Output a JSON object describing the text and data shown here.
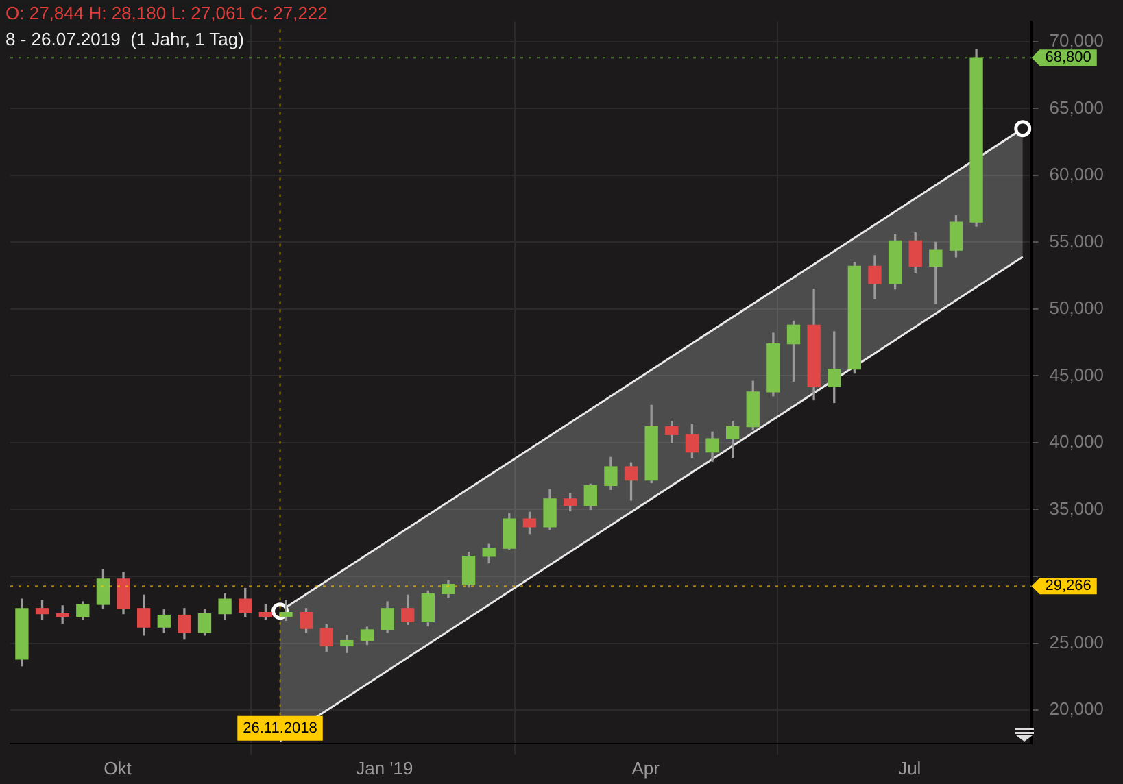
{
  "chart_data": {
    "type": "candlestick",
    "title": "O: 27,844  H: 28,180  L: 27,061  C: 27,222",
    "subtitle": "8 - 26.07.2019  (1 Jahr, 1 Tag)",
    "x": [
      "2018-08-29",
      "2018-09-05",
      "2018-09-12",
      "2018-09-19",
      "2018-09-26",
      "2018-10-03",
      "2018-10-10",
      "2018-10-17",
      "2018-10-24",
      "2018-10-31",
      "2018-11-07",
      "2018-11-14",
      "2018-11-21",
      "2018-11-28",
      "2018-12-05",
      "2018-12-12",
      "2018-12-19",
      "2018-12-26",
      "2019-01-02",
      "2019-01-09",
      "2019-01-16",
      "2019-01-23",
      "2019-01-30",
      "2019-02-06",
      "2019-02-13",
      "2019-02-20",
      "2019-02-27",
      "2019-03-06",
      "2019-03-13",
      "2019-03-20",
      "2019-03-27",
      "2019-04-03",
      "2019-04-10",
      "2019-04-17",
      "2019-04-24",
      "2019-05-01",
      "2019-05-08",
      "2019-05-15",
      "2019-05-22",
      "2019-05-29",
      "2019-06-05",
      "2019-06-12",
      "2019-06-19",
      "2019-06-26",
      "2019-07-03",
      "2019-07-10",
      "2019-07-17",
      "2019-07-24"
    ],
    "ohlc": [
      [
        23800,
        28300,
        23300,
        27600
      ],
      [
        27600,
        28200,
        26800,
        27200
      ],
      [
        27200,
        27800,
        26500,
        27000
      ],
      [
        27000,
        28100,
        26800,
        27900
      ],
      [
        27900,
        30500,
        27600,
        29800
      ],
      [
        29800,
        30300,
        27200,
        27600
      ],
      [
        27600,
        28600,
        25600,
        26200
      ],
      [
        26200,
        27500,
        25800,
        27100
      ],
      [
        27100,
        27600,
        25300,
        25800
      ],
      [
        25800,
        27500,
        25600,
        27200
      ],
      [
        27200,
        28700,
        26800,
        28300
      ],
      [
        28300,
        29100,
        27000,
        27300
      ],
      [
        27300,
        27900,
        26800,
        27000
      ],
      [
        27000,
        28200,
        26700,
        27300
      ],
      [
        27300,
        27600,
        25800,
        26100
      ],
      [
        26100,
        26400,
        24400,
        24800
      ],
      [
        24800,
        25600,
        24300,
        25200
      ],
      [
        25200,
        26200,
        24900,
        26000
      ],
      [
        26000,
        28100,
        25800,
        27600
      ],
      [
        27600,
        28600,
        26400,
        26600
      ],
      [
        26600,
        28900,
        26300,
        28700
      ],
      [
        28700,
        29700,
        28400,
        29400
      ],
      [
        29400,
        31800,
        29200,
        31500
      ],
      [
        31500,
        32400,
        31000,
        32100
      ],
      [
        32100,
        34700,
        32000,
        34300
      ],
      [
        34300,
        34800,
        33200,
        33700
      ],
      [
        33700,
        36500,
        33500,
        35800
      ],
      [
        35800,
        36200,
        34900,
        35300
      ],
      [
        35300,
        36900,
        35000,
        36800
      ],
      [
        36800,
        38900,
        36500,
        38200
      ],
      [
        38200,
        38500,
        35700,
        37200
      ],
      [
        37200,
        42800,
        37000,
        41200
      ],
      [
        41200,
        41600,
        40000,
        40600
      ],
      [
        40600,
        41400,
        38900,
        39300
      ],
      [
        39300,
        40800,
        38600,
        40300
      ],
      [
        40300,
        41600,
        38900,
        41200
      ],
      [
        41200,
        44600,
        41000,
        43800
      ],
      [
        43800,
        48200,
        43500,
        47400
      ],
      [
        47400,
        49100,
        44600,
        48800
      ],
      [
        48800,
        51500,
        43200,
        44200
      ],
      [
        44200,
        48300,
        43000,
        45500
      ],
      [
        45500,
        53500,
        45200,
        53200
      ],
      [
        53200,
        54000,
        50800,
        51900
      ],
      [
        51900,
        55600,
        51500,
        55100
      ],
      [
        55100,
        55700,
        52700,
        53200
      ],
      [
        53200,
        55000,
        50400,
        54400
      ],
      [
        54400,
        57000,
        53900,
        56500
      ],
      [
        56500,
        69400,
        56200,
        68800
      ]
    ],
    "series": [
      {
        "type": "line",
        "color": "#e8e8e8",
        "marker": "circle",
        "x": [
          "2018-11-26",
          "2019-08-09"
        ],
        "values": [
          27400,
          63500
        ]
      },
      {
        "type": "line",
        "color": "#e8e8e8",
        "marker": "none",
        "x": [
          "2018-11-26",
          "2019-08-09"
        ],
        "values": [
          17700,
          53900
        ],
        "lower": [
          17700,
          53900
        ],
        "upper": [
          27400,
          63500
        ]
      }
    ],
    "xlim": [
      "2018-08-25",
      "2019-08-12"
    ],
    "xticks": [
      {
        "value": "2018-10-01",
        "label": "Okt"
      },
      {
        "value": "2019-01-01",
        "label": "Jan '19"
      },
      {
        "value": "2019-04-01",
        "label": "Apr"
      },
      {
        "value": "2019-07-01",
        "label": "Jul"
      }
    ],
    "ylim": [
      17500,
      71500
    ],
    "yticks": [
      {
        "value": 20000,
        "label": "20,000"
      },
      {
        "value": 25000,
        "label": "25,000"
      },
      {
        "value": 30000,
        "label": null
      },
      {
        "value": 35000,
        "label": "35,000"
      },
      {
        "value": 40000,
        "label": "40,000"
      },
      {
        "value": 45000,
        "label": "45,000"
      },
      {
        "value": 50000,
        "label": "50,000"
      },
      {
        "value": 55000,
        "label": "55,000"
      },
      {
        "value": 60000,
        "label": "60,000"
      },
      {
        "value": 65000,
        "label": "65,000"
      },
      {
        "value": 70000,
        "label": "70,000"
      }
    ],
    "ref_lines": [
      {
        "axis": "y",
        "value": 68800,
        "label": "68,800",
        "color": "#7cc24a"
      },
      {
        "axis": "y",
        "value": 29266,
        "label": "29,266",
        "color": "#ffcc00"
      },
      {
        "axis": "x",
        "value": "2018-11-26",
        "label": "26.11.2018",
        "color": "#ffcc00"
      }
    ],
    "grid": true,
    "legend": false
  }
}
